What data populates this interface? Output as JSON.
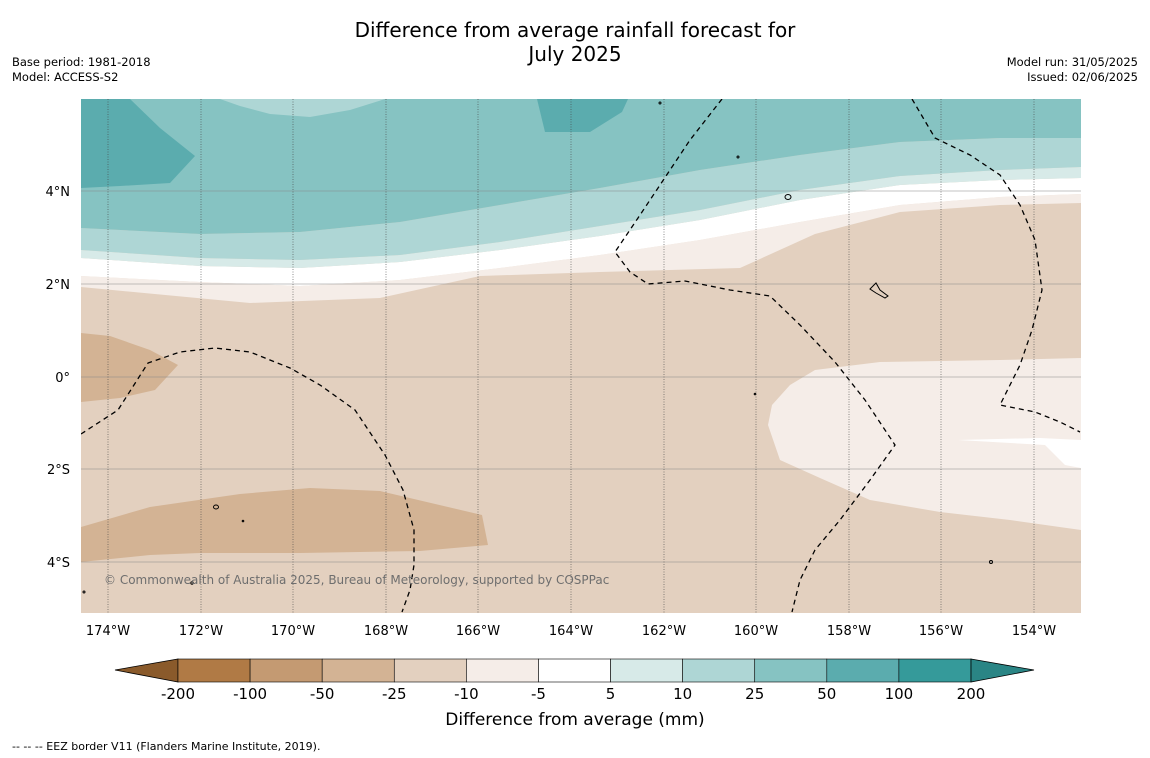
{
  "title": {
    "line1": "Difference from average rainfall forecast for",
    "line2": "July 2025"
  },
  "meta_left": {
    "base_period": "Base period: 1981-2018",
    "model": "Model: ACCESS-S2"
  },
  "meta_right": {
    "model_run": "Model run: 31/05/2025",
    "issued": "Issued: 02/06/2025"
  },
  "map": {
    "lat_labels": [
      "4°N",
      "2°N",
      "0°",
      "2°S",
      "4°S"
    ],
    "lon_labels": [
      "174°W",
      "172°W",
      "170°W",
      "168°W",
      "166°W",
      "164°W",
      "162°W",
      "160°W",
      "158°W",
      "156°W",
      "154°W"
    ],
    "copyright": "© Commonwealth of Australia 2025, Bureau of Meteorology, supported by COSPPac"
  },
  "colorbar": {
    "ticks": [
      "-200",
      "-100",
      "-50",
      "-25",
      "-10",
      "-5",
      "5",
      "10",
      "25",
      "50",
      "100",
      "200"
    ],
    "colors": [
      "#8a5a2b",
      "#b07a45",
      "#c49a72",
      "#d3b394",
      "#e3d0bf",
      "#f5ede8",
      "#ffffff",
      "#d7eae8",
      "#aed6d5",
      "#86c3c2",
      "#5bacae",
      "#359a9a",
      "#2a8585"
    ],
    "title": "Difference from average (mm)"
  },
  "footnote": "--  --  -- EEZ border V11 (Flanders Marine Institute, 2019)."
}
